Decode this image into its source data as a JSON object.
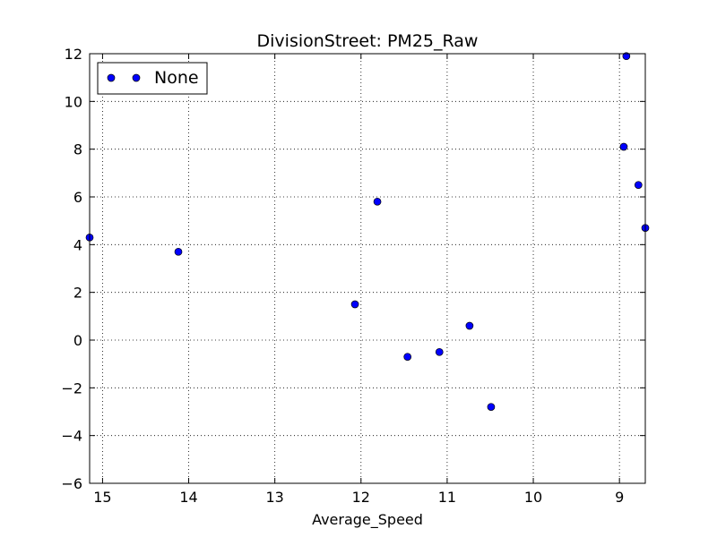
{
  "chart_data": {
    "type": "scatter",
    "title": "DivisionStreet: PM25_Raw",
    "xlabel": "Average_Speed",
    "ylabel": "",
    "xlim": [
      15.15,
      8.7
    ],
    "ylim": [
      -6,
      12
    ],
    "x_ticks": [
      15,
      14,
      13,
      12,
      11,
      10,
      9
    ],
    "y_ticks": [
      -6,
      -4,
      -2,
      0,
      2,
      4,
      6,
      8,
      10,
      12
    ],
    "x_tick_labels": [
      "15",
      "14",
      "13",
      "12",
      "11",
      "10",
      "9"
    ],
    "y_tick_labels": [
      "−6",
      "−4",
      "−2",
      "0",
      "2",
      "4",
      "6",
      "8",
      "10",
      "12"
    ],
    "grid": true,
    "legend_position": "top-left",
    "series": [
      {
        "name": "None",
        "color": "#0000ff",
        "marker": "circle",
        "x": [
          15.15,
          14.12,
          12.07,
          11.81,
          11.46,
          11.09,
          10.74,
          10.49,
          8.95,
          8.92,
          8.78,
          8.7
        ],
        "y": [
          4.3,
          3.7,
          1.5,
          5.8,
          -0.7,
          -0.5,
          0.6,
          -2.8,
          8.1,
          11.9,
          6.5,
          4.7
        ]
      }
    ]
  }
}
